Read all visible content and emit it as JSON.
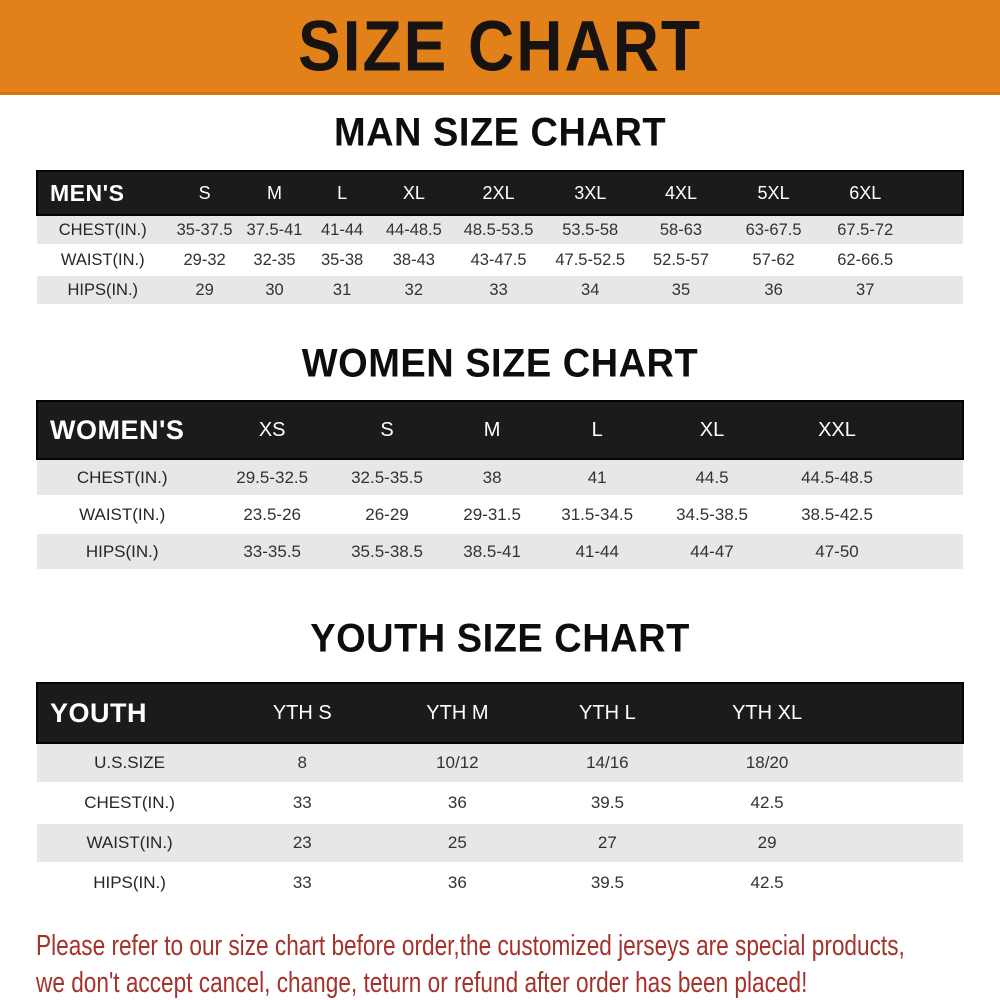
{
  "banner": {
    "title": "SIZE CHART",
    "bg_color": "#e2811a",
    "text_color": "#171310"
  },
  "sections": [
    {
      "key": "men",
      "title": "MAN SIZE CHART",
      "table": {
        "header_label": "MEN'S",
        "columns": [
          "S",
          "M",
          "L",
          "XL",
          "2XL",
          "3XL",
          "4XL",
          "5XL",
          "6XL"
        ],
        "rows": [
          {
            "label": "CHEST(IN.)",
            "values": [
              "35-37.5",
              "37.5-41",
              "41-44",
              "44-48.5",
              "48.5-53.5",
              "53.5-58",
              "58-63",
              "63-67.5",
              "67.5-72"
            ]
          },
          {
            "label": "WAIST(IN.)",
            "values": [
              "29-32",
              "32-35",
              "35-38",
              "38-43",
              "43-47.5",
              "47.5-52.5",
              "52.5-57",
              "57-62",
              "62-66.5"
            ]
          },
          {
            "label": "HIPS(IN.)",
            "values": [
              "29",
              "30",
              "31",
              "32",
              "33",
              "34",
              "35",
              "36",
              "37"
            ]
          }
        ]
      }
    },
    {
      "key": "women",
      "title": "WOMEN SIZE CHART",
      "table": {
        "header_label": "WOMEN'S",
        "columns": [
          "XS",
          "S",
          "M",
          "L",
          "XL",
          "XXL"
        ],
        "rows": [
          {
            "label": "CHEST(IN.)",
            "values": [
              "29.5-32.5",
              "32.5-35.5",
              "38",
              "41",
              "44.5",
              "44.5-48.5"
            ]
          },
          {
            "label": "WAIST(IN.)",
            "values": [
              "23.5-26",
              "26-29",
              "29-31.5",
              "31.5-34.5",
              "34.5-38.5",
              "38.5-42.5"
            ]
          },
          {
            "label": "HIPS(IN.)",
            "values": [
              "33-35.5",
              "35.5-38.5",
              "38.5-41",
              "41-44",
              "44-47",
              "47-50"
            ]
          }
        ]
      }
    },
    {
      "key": "youth",
      "title": "YOUTH SIZE CHART",
      "table": {
        "header_label": "YOUTH",
        "columns": [
          "YTH S",
          "YTH M",
          "YTH L",
          "YTH XL"
        ],
        "rows": [
          {
            "label": "U.S.SIZE",
            "values": [
              "8",
              "10/12",
              "14/16",
              "18/20"
            ]
          },
          {
            "label": "CHEST(IN.)",
            "values": [
              "33",
              "36",
              "39.5",
              "42.5"
            ]
          },
          {
            "label": "WAIST(IN.)",
            "values": [
              "23",
              "25",
              "27",
              "29"
            ]
          },
          {
            "label": "HIPS(IN.)",
            "values": [
              "33",
              "36",
              "39.5",
              "42.5"
            ]
          }
        ]
      }
    }
  ],
  "footer": {
    "color": "#a5322b",
    "lines": [
      "Please refer to our size chart before order,the customized jerseys are special products,",
      "we don't accept cancel, change, teturn or refund after order has been placed!"
    ]
  }
}
